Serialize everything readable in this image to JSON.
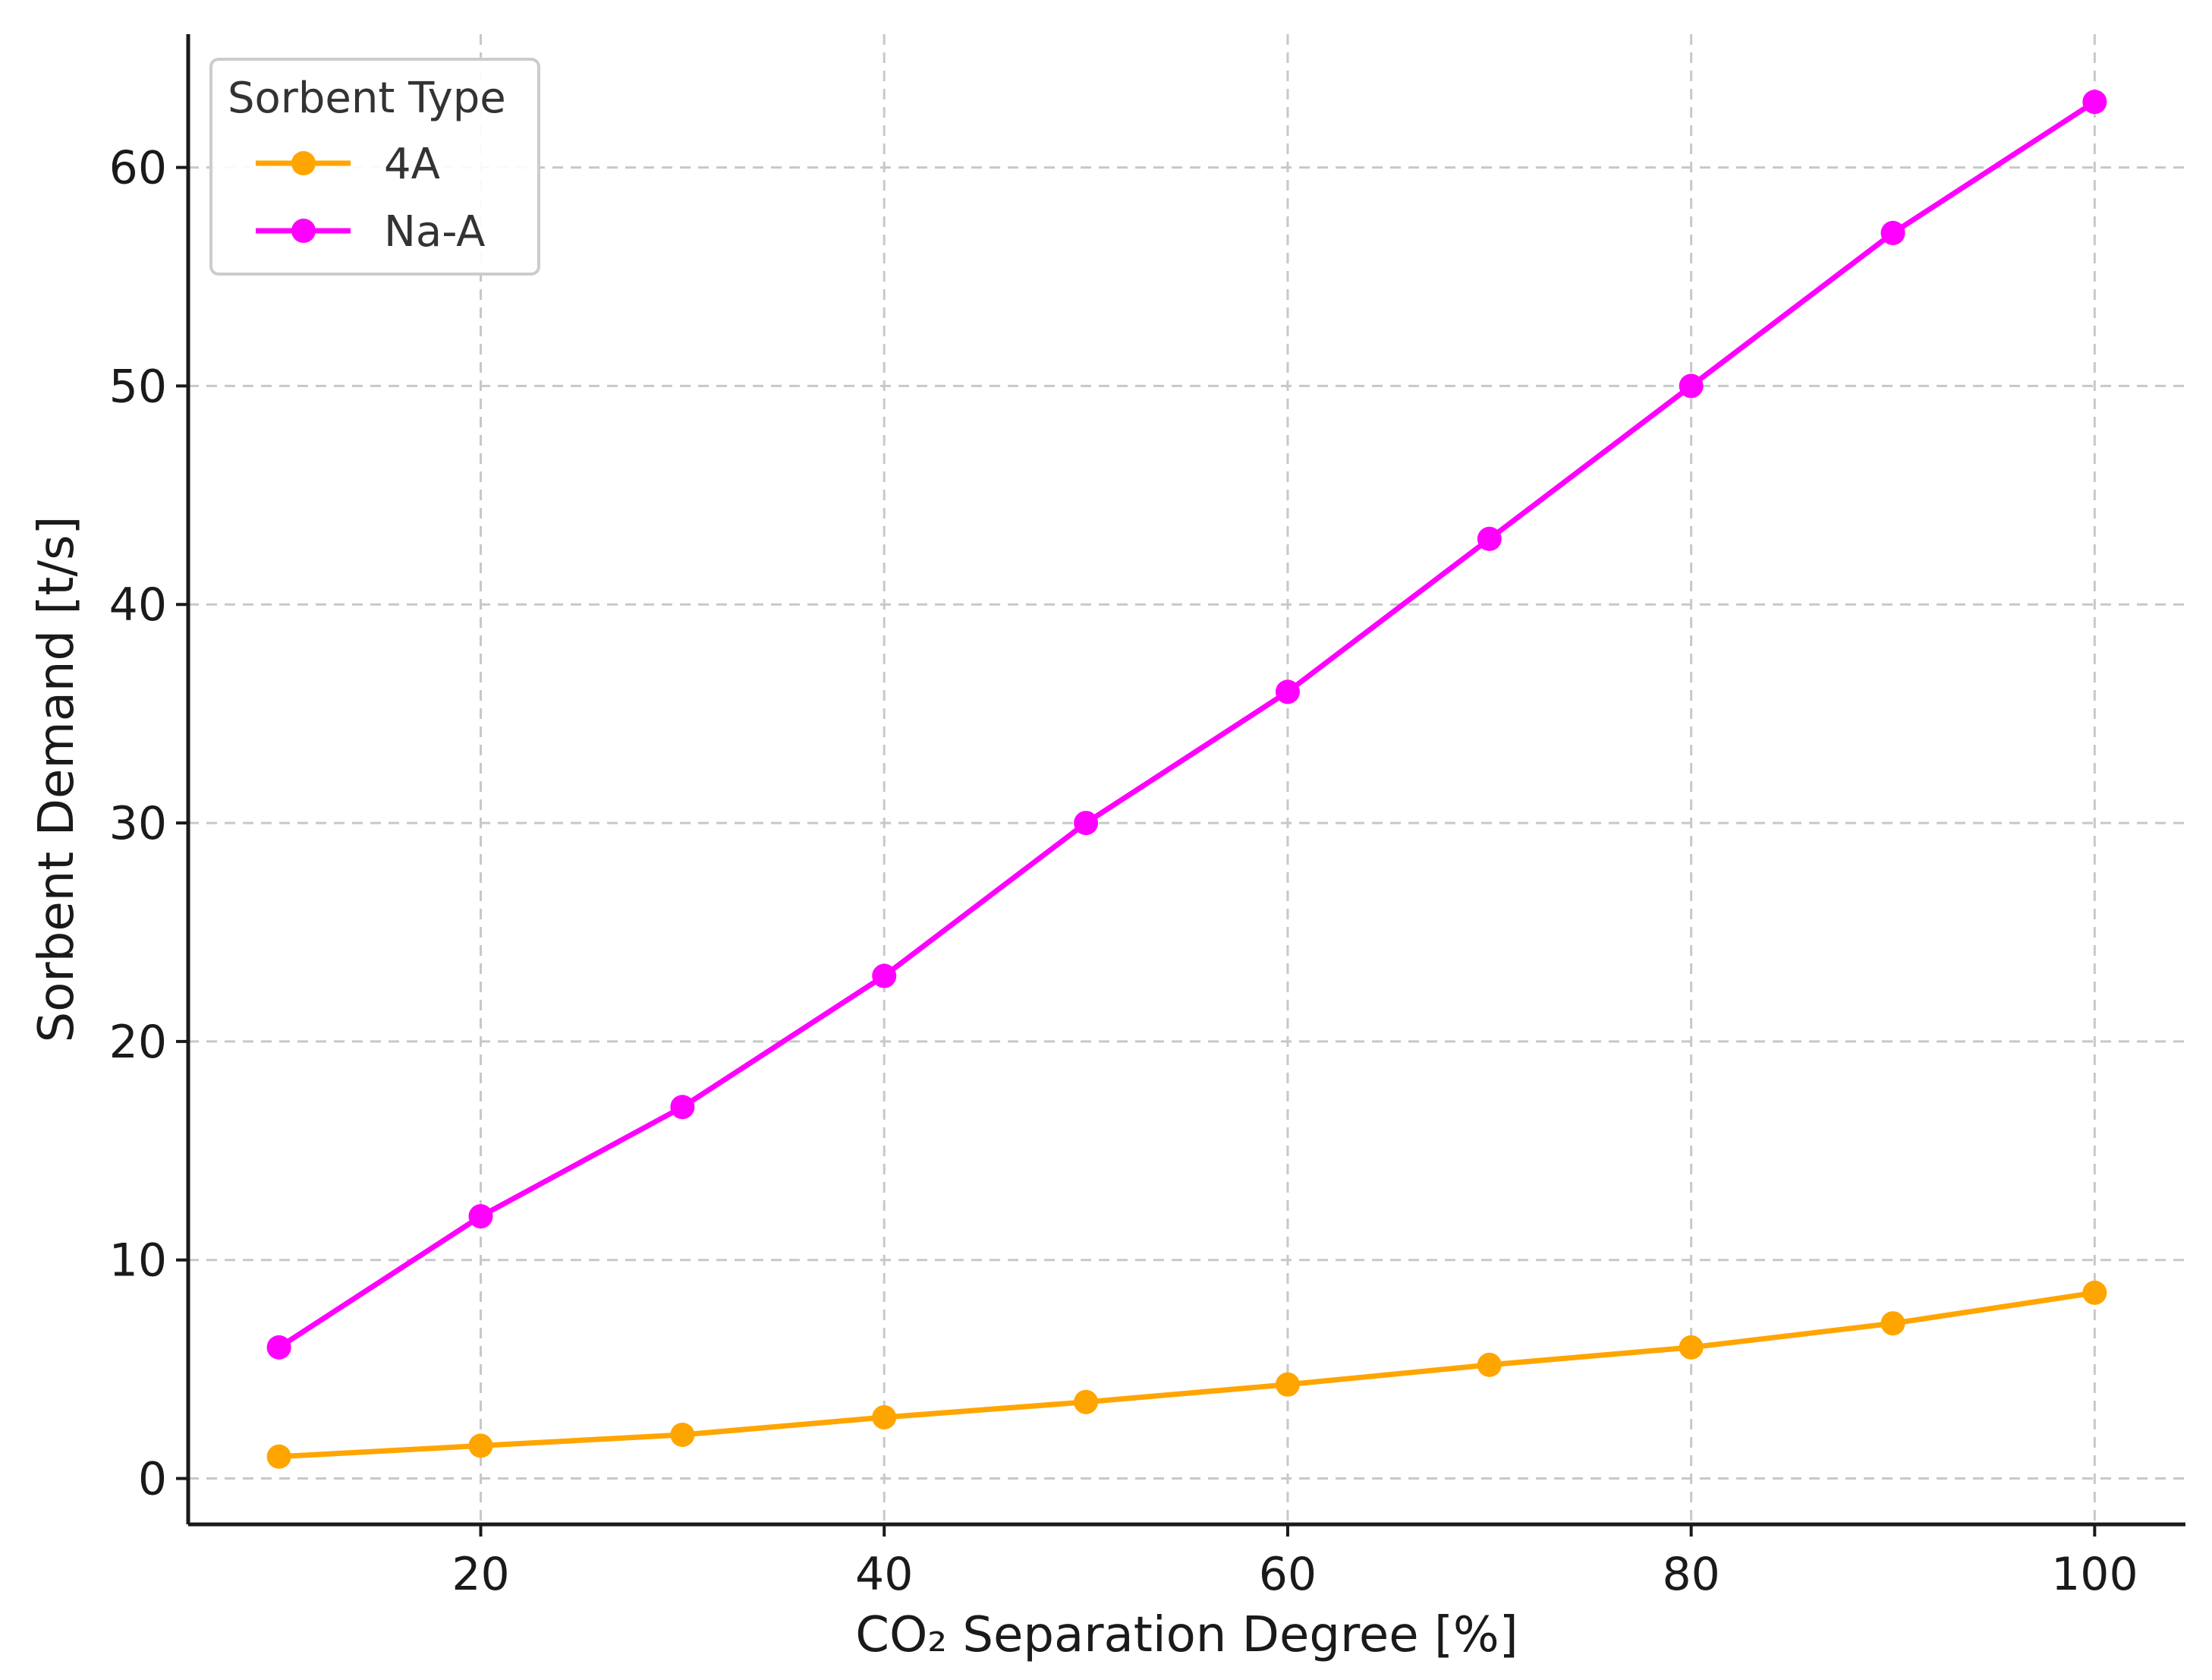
{
  "chart_data": {
    "type": "line",
    "title": "",
    "xlabel": "CO₂ Separation Degree [%]",
    "ylabel": "Sorbent Demand [t/s]",
    "x": [
      10,
      20,
      30,
      40,
      50,
      60,
      70,
      80,
      90,
      100
    ],
    "xlim": [
      5.5,
      104.5
    ],
    "ylim": [
      -2.1,
      66.1
    ],
    "xticks": [
      20,
      40,
      60,
      80,
      100
    ],
    "yticks": [
      0,
      10,
      20,
      30,
      40,
      50,
      60
    ],
    "grid": true,
    "legend": {
      "title": "Sorbent Type",
      "position": "top-left"
    },
    "series": [
      {
        "name": "4A",
        "color": "#FFA500",
        "values": [
          1.0,
          1.5,
          2.0,
          2.8,
          3.5,
          4.3,
          5.2,
          6.0,
          7.1,
          8.5
        ]
      },
      {
        "name": "Na-A",
        "color": "#FF00FF",
        "values": [
          6,
          12,
          17,
          23,
          30,
          36,
          43,
          50,
          57,
          63
        ]
      }
    ]
  }
}
